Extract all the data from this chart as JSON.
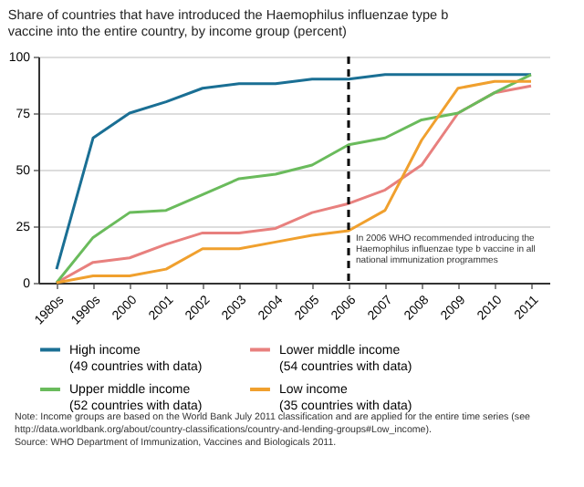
{
  "chart_data": {
    "type": "line",
    "title": "Share of countries that have introduced the Haemophilus influenzae type b vaccine into the entire country, by income group (percent)",
    "categories": [
      "1980s",
      "1990s",
      "2000",
      "2001",
      "2002",
      "2003",
      "2004",
      "2005",
      "2006",
      "2007",
      "2008",
      "2009",
      "2010",
      "2011"
    ],
    "series": [
      {
        "name": "High income (49 countries with data)",
        "color": "#1a6f94",
        "values": [
          6,
          64,
          75,
          80,
          86,
          88,
          88,
          90,
          90,
          92,
          92,
          92,
          92,
          92
        ]
      },
      {
        "name": "Lower middle income (54 countries with data)",
        "color": "#e8807e",
        "values": [
          0,
          9,
          11,
          17,
          22,
          22,
          24,
          31,
          35,
          41,
          52,
          75,
          84,
          87
        ]
      },
      {
        "name": "Upper middle income (52 countries with data)",
        "color": "#6abb5c",
        "values": [
          0,
          20,
          31,
          32,
          39,
          46,
          48,
          52,
          61,
          64,
          72,
          75,
          84,
          92
        ]
      },
      {
        "name": "Low income (35 countries with data)",
        "color": "#f0a02e",
        "values": [
          0,
          3,
          3,
          6,
          15,
          15,
          18,
          21,
          23,
          32,
          63,
          86,
          89,
          89
        ]
      }
    ],
    "ylim": [
      0,
      100
    ],
    "yticks": [
      0,
      25,
      50,
      75,
      100
    ],
    "grid": "y",
    "legend": "bottom",
    "marker": "none",
    "line_style": "solid",
    "ref_lines": [
      {
        "axis": "x",
        "value": "2006",
        "label": "In 2006 WHO recommended introducing the Haemophilus influenzae type b vaccine in all national immunization programmes",
        "color": "#000000",
        "line_style": "dashed"
      }
    ],
    "annotations": [
      "Note: Income groups are based on the World Bank July 2011 classification and are applied for the entire time series (see http://data.worldbank.org/about/country-classifications/country-and-lending-groups#Low_income).",
      "Source: WHO Department of Immunization, Vaccines and Biologicals 2011."
    ]
  }
}
